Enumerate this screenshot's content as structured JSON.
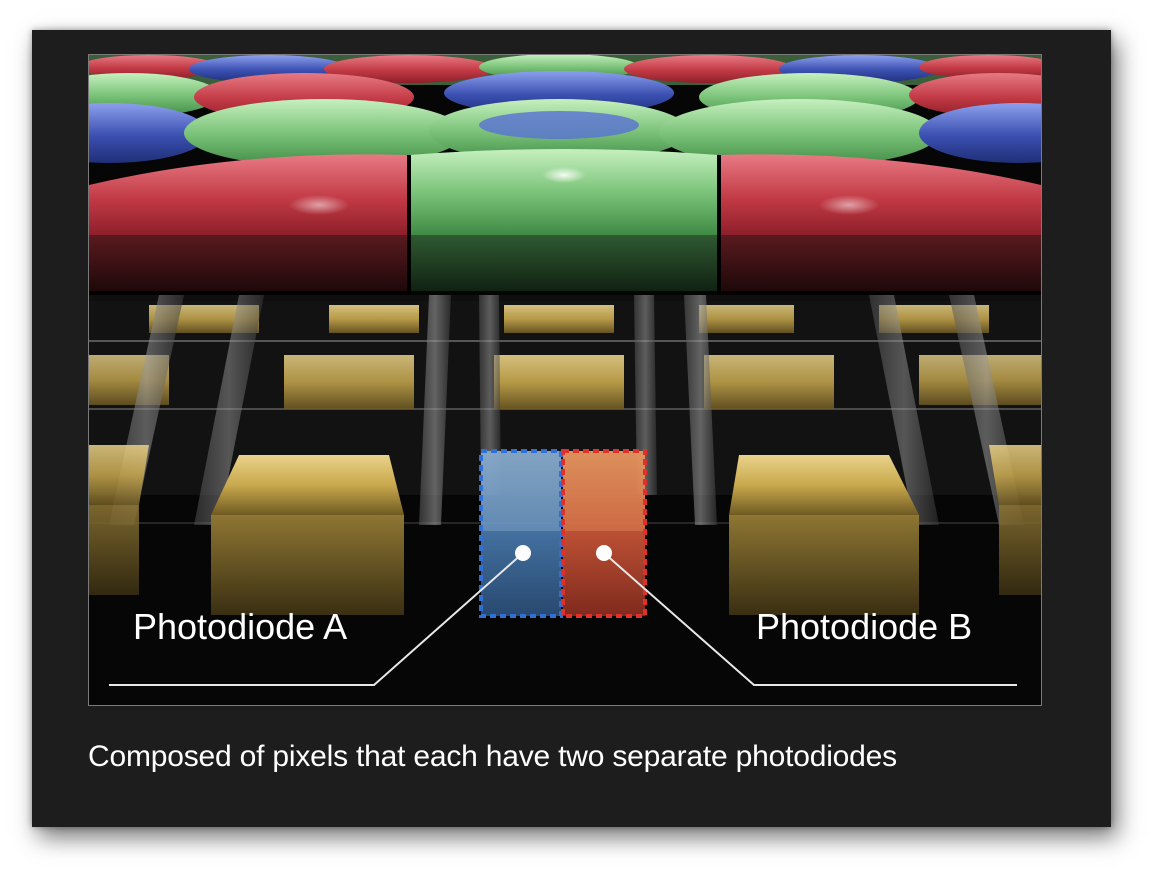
{
  "diagram": {
    "label_a": "Photodiode A",
    "label_b": "Photodiode B"
  },
  "caption": "Composed of pixels that each have two separate photodiodes",
  "colors": {
    "background": "#1d1d1d",
    "filter_red": "#c23a45",
    "filter_green": "#7cc47a",
    "filter_blue": "#3a4fb0",
    "wiring_gold": "#c9a94d",
    "photodiode_a": "#4b7cb0",
    "photodiode_b": "#d15a3a",
    "outline_a": "#2f6fd6",
    "outline_b": "#e0302c"
  }
}
